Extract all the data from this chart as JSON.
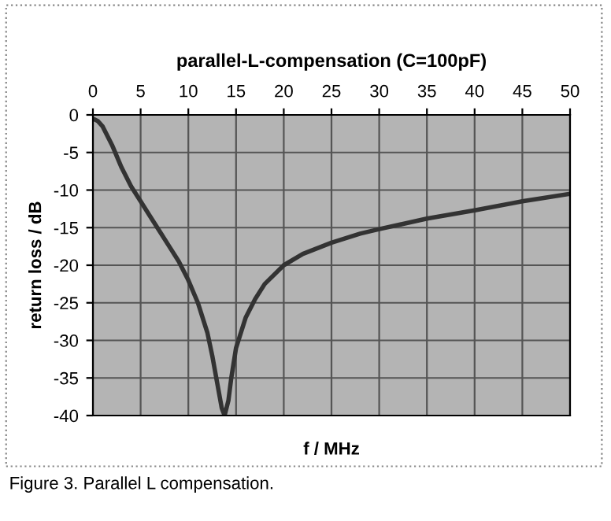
{
  "chart_data": {
    "type": "line",
    "title": "parallel-L-compensation (C=100pF)",
    "xlabel": "f / MHz",
    "ylabel": "return loss / dB",
    "annotations": [
      "Figure 3. Parallel L compensation."
    ],
    "x": [
      0,
      0.5,
      1,
      2,
      3,
      4,
      5,
      6,
      7,
      8,
      9,
      10,
      11,
      12,
      12.5,
      13,
      13.5,
      13.8,
      14.2,
      14.5,
      15,
      16,
      17,
      18,
      20,
      22,
      25,
      28,
      30,
      35,
      40,
      45,
      50
    ],
    "series": [
      {
        "color": "#333333",
        "values": [
          -0.5,
          -0.8,
          -1.5,
          -4,
          -7,
          -9.5,
          -11.5,
          -13.5,
          -15.5,
          -17.5,
          -19.5,
          -22,
          -25,
          -29,
          -32,
          -35.5,
          -39,
          -40,
          -38,
          -35,
          -31,
          -27,
          -24.5,
          -22.5,
          -20,
          -18.5,
          -17,
          -15.8,
          -15.2,
          -13.8,
          -12.7,
          -11.5,
          -10.5
        ]
      }
    ],
    "xlim": [
      0,
      50
    ],
    "ylim": [
      -40,
      0
    ],
    "xticks": [
      0,
      5,
      10,
      15,
      20,
      25,
      30,
      35,
      40,
      45,
      50
    ],
    "yticks": [
      -40,
      -35,
      -30,
      -25,
      -20,
      -15,
      -10,
      -5,
      0
    ],
    "grid": true,
    "marker": "none",
    "line_style": "solid",
    "legend": false
  }
}
